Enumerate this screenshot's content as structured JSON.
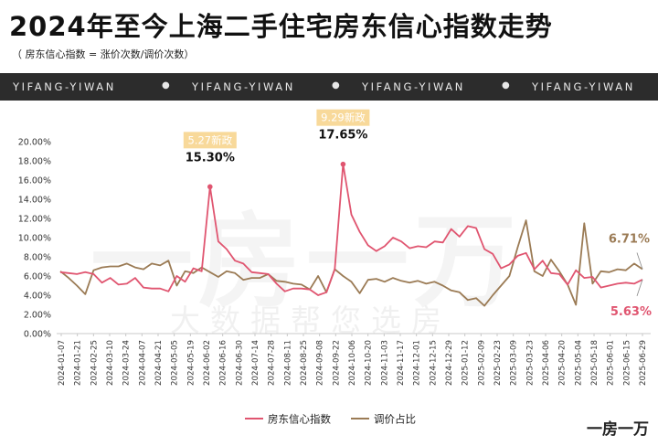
{
  "header": {
    "title": "2024年至今上海二手住宅房东信心指数走势",
    "subtitle": "（ 房东信心指数 = 涨价次数/调价次数）"
  },
  "banner": {
    "items": [
      "YIFANG-YIWAN",
      "YIFANG-YIWAN",
      "YIFANG-YIWAN",
      "YIFANG-YIWAN"
    ]
  },
  "watermark": {
    "main": "一房一万",
    "sub": "大数据帮您选房"
  },
  "corner_logo": "一房一万",
  "colors": {
    "confidence": "#e05570",
    "adjustment": "#9b7b55",
    "badge_bg": "#f8d99a",
    "badge_text": "#ffffff",
    "banner_bg": "#2c2c2c"
  },
  "chart_data": {
    "type": "line",
    "ylim": [
      0,
      20
    ],
    "y_tick_labels": [
      "0.00%",
      "2.00%",
      "4.00%",
      "6.00%",
      "8.00%",
      "10.00%",
      "12.00%",
      "14.00%",
      "16.00%",
      "18.00%",
      "20.00%"
    ],
    "x_tick_labels": [
      "2024-01-07",
      "2024-01-21",
      "2024-02-25",
      "2024-03-10",
      "2024-03-24",
      "2024-04-07",
      "2024-04-21",
      "2024-05-05",
      "2024-05-19",
      "2024-06-02",
      "2024-06-16",
      "2024-06-30",
      "2024-07-14",
      "2024-07-28",
      "2024-08-11",
      "2024-08-25",
      "2024-09-08",
      "2024-09-22",
      "2024-10-06",
      "2024-10-20",
      "2024-11-03",
      "2024-11-17",
      "2024-12-01",
      "2024-12-15",
      "2024-12-29",
      "2025-01-12",
      "2025-02-09",
      "2025-02-23",
      "2025-03-09",
      "2025-03-23",
      "2025-04-06",
      "2025-04-20",
      "2025-05-04",
      "2025-05-18",
      "2025-06-01",
      "2025-06-15",
      "2025-06-29"
    ],
    "series": [
      {
        "name": "房东信心指数",
        "color": "#e05570",
        "values": [
          6.4,
          6.3,
          6.2,
          6.4,
          6.2,
          5.3,
          5.8,
          5.1,
          5.2,
          5.8,
          4.8,
          4.7,
          4.7,
          4.4,
          6.0,
          5.4,
          6.8,
          6.5,
          15.3,
          9.6,
          8.8,
          7.6,
          7.3,
          6.4,
          6.3,
          6.2,
          5.2,
          4.4,
          4.7,
          4.7,
          4.6,
          4.0,
          4.3,
          6.7,
          17.65,
          12.4,
          10.6,
          9.2,
          8.6,
          9.1,
          10.0,
          9.6,
          8.9,
          9.1,
          9.0,
          9.6,
          9.5,
          10.9,
          10.1,
          11.2,
          11.0,
          8.8,
          8.3,
          6.8,
          7.2,
          8.1,
          8.4,
          6.7,
          7.6,
          6.3,
          6.2,
          5.1,
          6.6,
          5.8,
          5.9,
          4.8,
          5.0,
          5.2,
          5.3,
          5.2,
          5.63
        ],
        "end_label": "5.63%"
      },
      {
        "name": "调价占比",
        "color": "#9b7b55",
        "values": [
          6.5,
          5.8,
          5.0,
          4.1,
          6.6,
          6.9,
          7.0,
          7.0,
          7.3,
          6.9,
          6.7,
          7.3,
          7.1,
          7.6,
          5.0,
          6.5,
          6.3,
          6.9,
          6.4,
          5.9,
          6.5,
          6.3,
          5.6,
          5.8,
          5.8,
          6.2,
          5.5,
          5.4,
          5.2,
          5.1,
          4.6,
          6.0,
          4.3,
          6.7,
          6.0,
          5.4,
          4.2,
          5.6,
          5.7,
          5.4,
          5.8,
          5.5,
          5.3,
          5.5,
          5.2,
          5.4,
          5.0,
          4.5,
          4.3,
          3.5,
          3.7,
          2.9,
          4.0,
          5.0,
          6.0,
          9.0,
          11.8,
          6.5,
          6.0,
          7.7,
          6.5,
          5.1,
          3.0,
          11.5,
          5.2,
          6.5,
          6.4,
          6.7,
          6.6,
          7.3,
          6.71
        ],
        "end_label": "6.71%"
      }
    ],
    "annotations": [
      {
        "badge": "5.27新政",
        "value_label": "15.30%",
        "point_index": 18
      },
      {
        "badge": "9.29新政",
        "value_label": "17.65%",
        "point_index": 34
      }
    ],
    "legend": {
      "placement": "bottom-center"
    },
    "grid": false
  }
}
